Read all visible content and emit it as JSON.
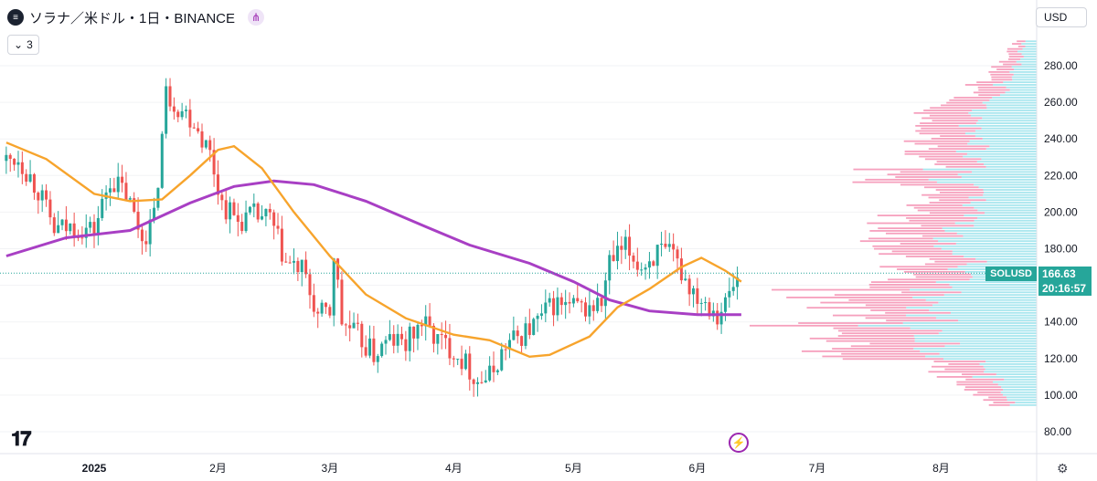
{
  "header": {
    "title": "ソラナ／米ドル・1日・BINANCE",
    "indicator_count": "3"
  },
  "currency_button": "USD",
  "price_tag": {
    "symbol": "SOLUSD",
    "price": "166.63",
    "countdown": "20:16:57"
  },
  "icons": {
    "symbol": "solana-logo-icon",
    "share": "share-icon",
    "logo": "tradingview-logo-icon",
    "bolt": "lightning-icon",
    "settings": "gear-icon"
  },
  "colors": {
    "up": "#26a69a",
    "down": "#ef5350",
    "ma_fast": "#f7a42c",
    "ma_slow": "#a83fc4",
    "volume_up": "#9fe3ec",
    "volume_down": "#f48fb1",
    "accent": "#26a69a"
  },
  "chart_data": {
    "type": "candlestick",
    "y_ticks": [
      80,
      100,
      120,
      140,
      160,
      180,
      200,
      220,
      240,
      260,
      280
    ],
    "y_tick_labels": [
      "80.00",
      "100.00",
      "120.00",
      "140.00",
      "160.00",
      "180.00",
      "200.00",
      "220.00",
      "240.00",
      "260.00",
      "280.00"
    ],
    "x_labels": [
      "2025",
      "2月",
      "3月",
      "4月",
      "5月",
      "6月",
      "7月",
      "8月"
    ],
    "last_price": 166.63,
    "close_path": [
      [
        "2024-12-10",
        228
      ],
      [
        "2024-12-13",
        230
      ],
      [
        "2024-12-18",
        212
      ],
      [
        "2024-12-22",
        190
      ],
      [
        "2024-12-27",
        192
      ],
      [
        "2025-01-01",
        190
      ],
      [
        "2025-01-05",
        218
      ],
      [
        "2025-01-09",
        210
      ],
      [
        "2025-01-13",
        186
      ],
      [
        "2025-01-16",
        196
      ],
      [
        "2025-01-19",
        265
      ],
      [
        "2025-01-22",
        258
      ],
      [
        "2025-01-26",
        250
      ],
      [
        "2025-01-30",
        232
      ],
      [
        "2025-02-02",
        205
      ],
      [
        "2025-02-06",
        195
      ],
      [
        "2025-02-10",
        198
      ],
      [
        "2025-02-14",
        196
      ],
      [
        "2025-02-18",
        172
      ],
      [
        "2025-02-22",
        168
      ],
      [
        "2025-02-26",
        143
      ],
      [
        "2025-03-01",
        145
      ],
      [
        "2025-03-02",
        178
      ],
      [
        "2025-03-04",
        140
      ],
      [
        "2025-03-08",
        132
      ],
      [
        "2025-03-12",
        122
      ],
      [
        "2025-03-16",
        130
      ],
      [
        "2025-03-20",
        128
      ],
      [
        "2025-03-24",
        140
      ],
      [
        "2025-03-28",
        130
      ],
      [
        "2025-04-01",
        125
      ],
      [
        "2025-04-04",
        117
      ],
      [
        "2025-04-07",
        108
      ],
      [
        "2025-04-10",
        110
      ],
      [
        "2025-04-14",
        127
      ],
      [
        "2025-04-18",
        133
      ],
      [
        "2025-04-22",
        140
      ],
      [
        "2025-04-26",
        150
      ],
      [
        "2025-04-30",
        148
      ],
      [
        "2025-05-04",
        147
      ],
      [
        "2025-05-08",
        150
      ],
      [
        "2025-05-10",
        172
      ],
      [
        "2025-05-14",
        180
      ],
      [
        "2025-05-18",
        170
      ],
      [
        "2025-05-22",
        178
      ],
      [
        "2025-05-26",
        175
      ],
      [
        "2025-05-30",
        160
      ],
      [
        "2025-06-01",
        155
      ],
      [
        "2025-06-04",
        150
      ],
      [
        "2025-06-06",
        145
      ],
      [
        "2025-06-08",
        150
      ],
      [
        "2025-06-10",
        160
      ],
      [
        "2025-06-12",
        166.63
      ]
    ],
    "ma_fast": [
      [
        "2024-12-10",
        238
      ],
      [
        "2024-12-20",
        229
      ],
      [
        "2025-01-01",
        210
      ],
      [
        "2025-01-10",
        206
      ],
      [
        "2025-01-18",
        207
      ],
      [
        "2025-01-25",
        220
      ],
      [
        "2025-02-01",
        234
      ],
      [
        "2025-02-05",
        236
      ],
      [
        "2025-02-12",
        224
      ],
      [
        "2025-02-20",
        200
      ],
      [
        "2025-03-01",
        176
      ],
      [
        "2025-03-10",
        155
      ],
      [
        "2025-03-20",
        142
      ],
      [
        "2025-04-01",
        133
      ],
      [
        "2025-04-10",
        130
      ],
      [
        "2025-04-20",
        121
      ],
      [
        "2025-04-25",
        122
      ],
      [
        "2025-05-05",
        132
      ],
      [
        "2025-05-12",
        148
      ],
      [
        "2025-05-20",
        158
      ],
      [
        "2025-05-28",
        170
      ],
      [
        "2025-06-02",
        175
      ],
      [
        "2025-06-08",
        168
      ],
      [
        "2025-06-12",
        162
      ]
    ],
    "ma_slow": [
      [
        "2024-12-10",
        176
      ],
      [
        "2024-12-25",
        186
      ],
      [
        "2025-01-10",
        190
      ],
      [
        "2025-01-25",
        205
      ],
      [
        "2025-02-05",
        214
      ],
      [
        "2025-02-15",
        217
      ],
      [
        "2025-02-25",
        215
      ],
      [
        "2025-03-10",
        206
      ],
      [
        "2025-03-25",
        192
      ],
      [
        "2025-04-05",
        182
      ],
      [
        "2025-04-20",
        172
      ],
      [
        "2025-05-01",
        162
      ],
      [
        "2025-05-10",
        152
      ],
      [
        "2025-05-20",
        146
      ],
      [
        "2025-06-01",
        144
      ],
      [
        "2025-06-12",
        144
      ]
    ],
    "volume_profile_range": [
      95,
      295
    ]
  }
}
